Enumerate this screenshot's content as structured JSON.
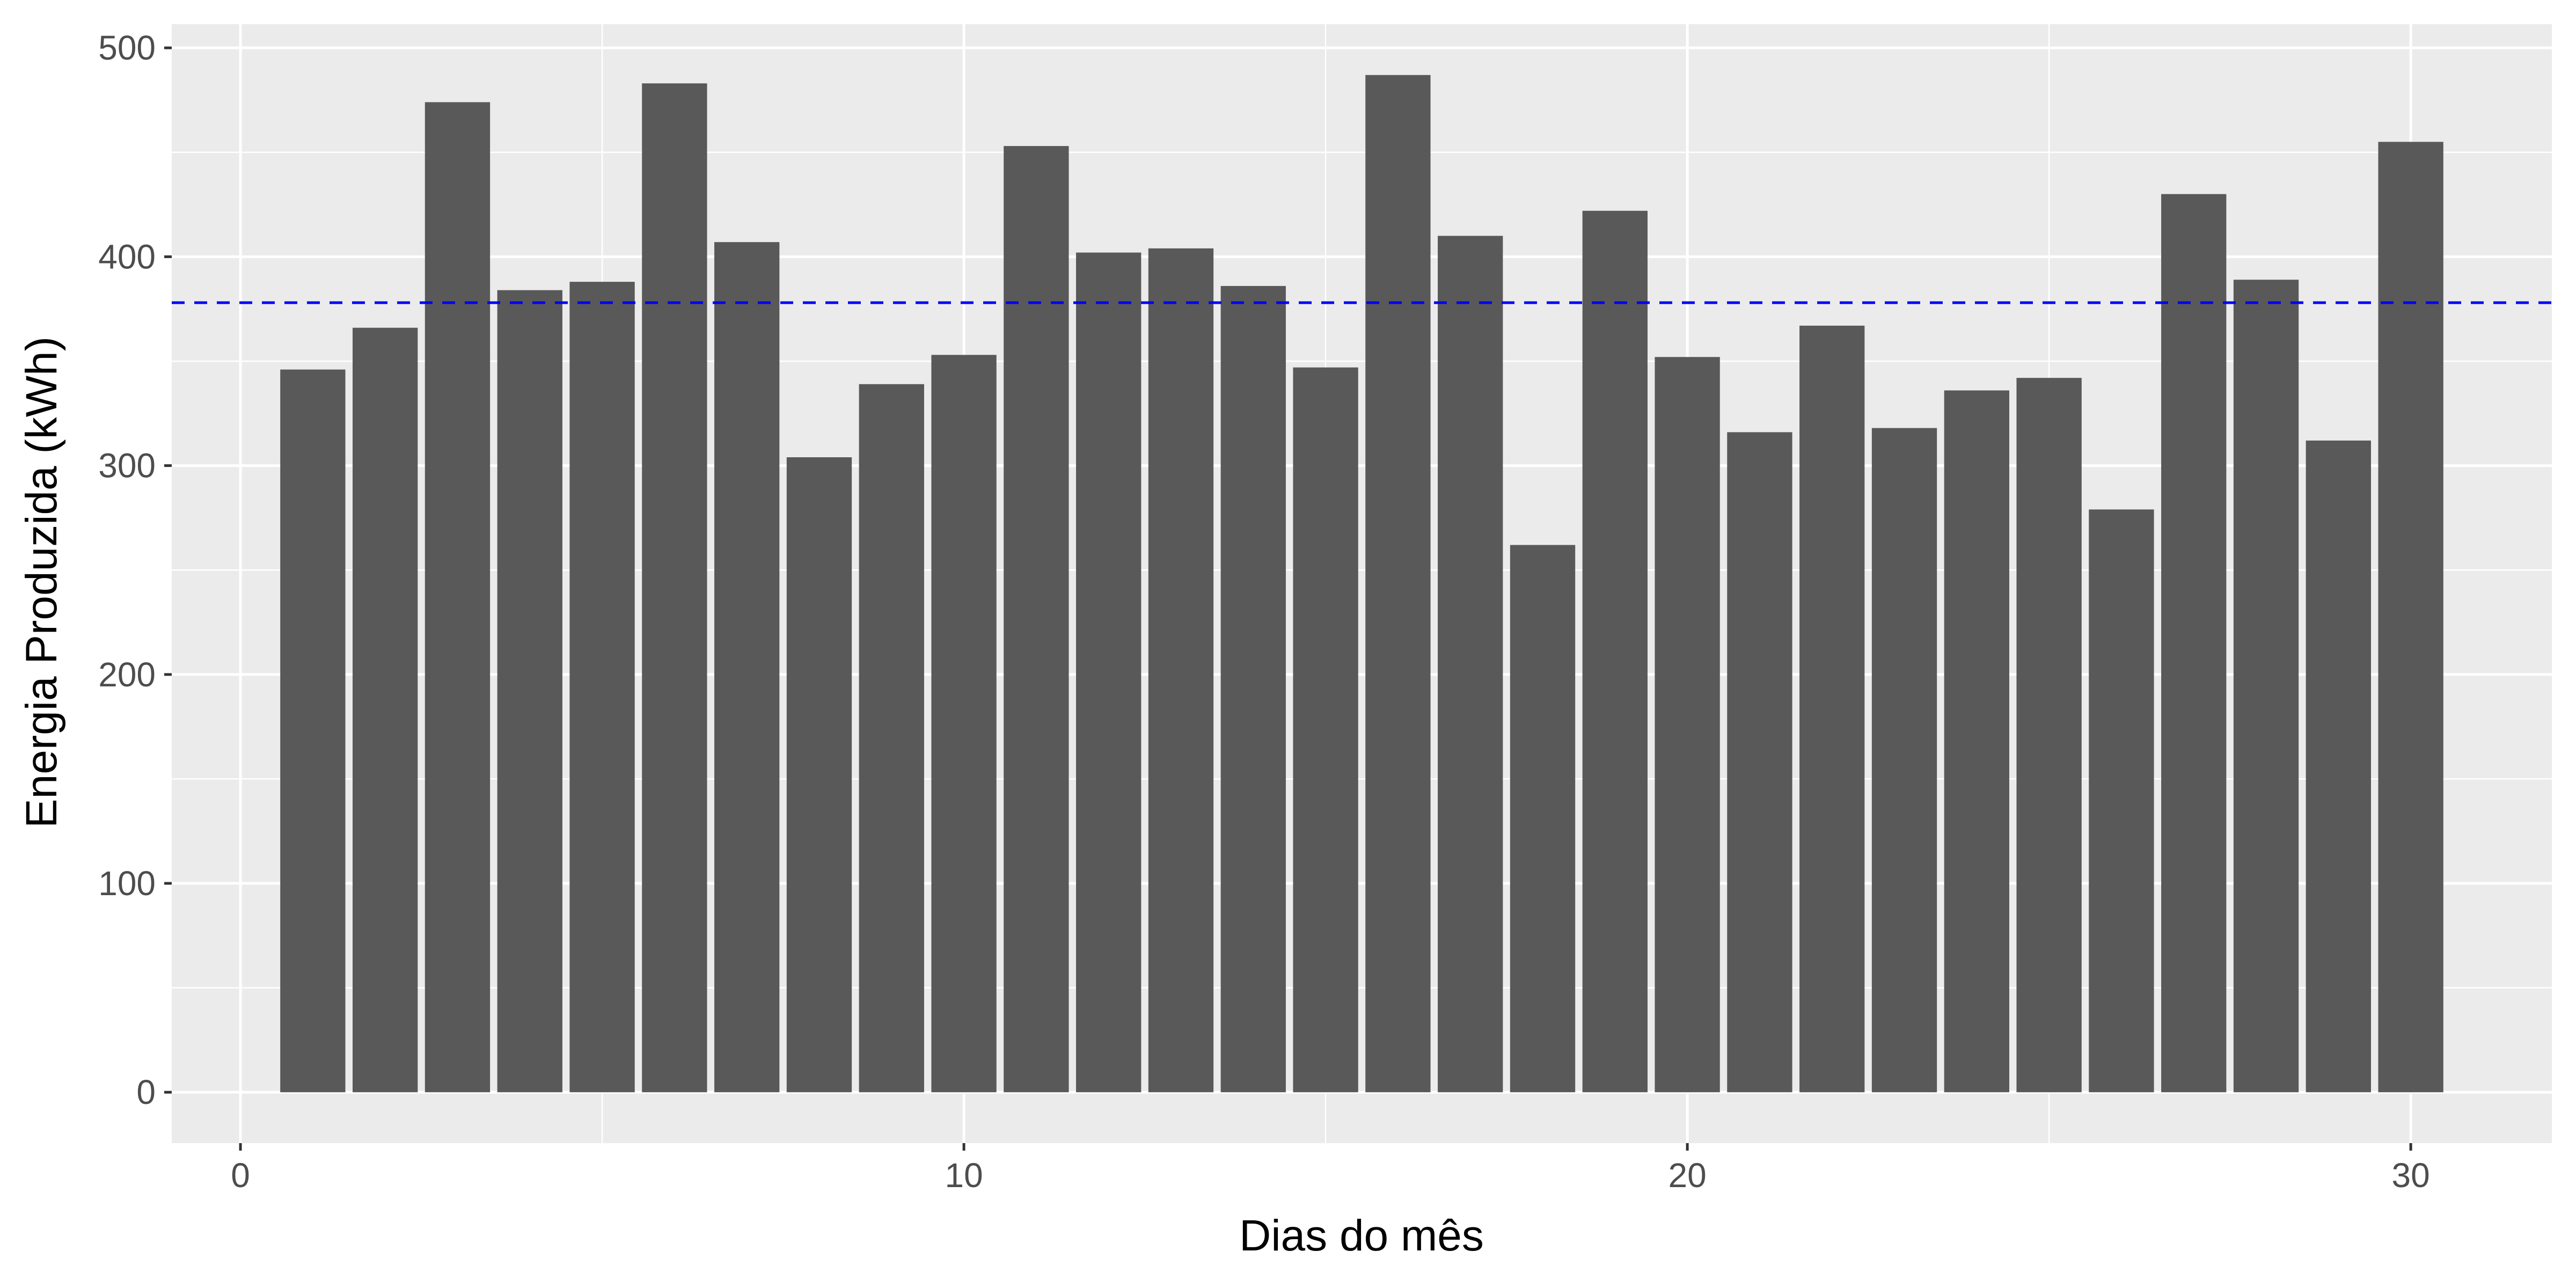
{
  "chart_data": {
    "type": "bar",
    "xlabel": "Dias do mês",
    "ylabel": "Energia Produzida (kWh)",
    "x": [
      1,
      2,
      3,
      4,
      5,
      6,
      7,
      8,
      9,
      10,
      11,
      12,
      13,
      14,
      15,
      16,
      17,
      18,
      19,
      20,
      21,
      22,
      23,
      24,
      25,
      26,
      27,
      28,
      29,
      30
    ],
    "values": [
      346,
      366,
      474,
      384,
      388,
      483,
      407,
      304,
      339,
      353,
      453,
      402,
      404,
      386,
      347,
      487,
      410,
      262,
      422,
      352,
      316,
      367,
      318,
      336,
      342,
      279,
      430,
      389,
      312,
      455
    ],
    "mean_line": 378,
    "xlim": [
      -0.95,
      31.95
    ],
    "ylim": [
      -24.35,
      511.35
    ],
    "x_ticks": [
      0,
      10,
      20,
      30
    ],
    "x_tick_labels": [
      "0",
      "10",
      "20",
      "30"
    ],
    "y_ticks": [
      0,
      100,
      200,
      300,
      400,
      500
    ],
    "y_tick_labels": [
      "0",
      "100",
      "200",
      "300",
      "400",
      "500"
    ],
    "grid": true,
    "colors": {
      "bar": "#595959",
      "mean_line": "#0000ff",
      "panel": "#ebebeb",
      "grid": "#ffffff"
    }
  }
}
